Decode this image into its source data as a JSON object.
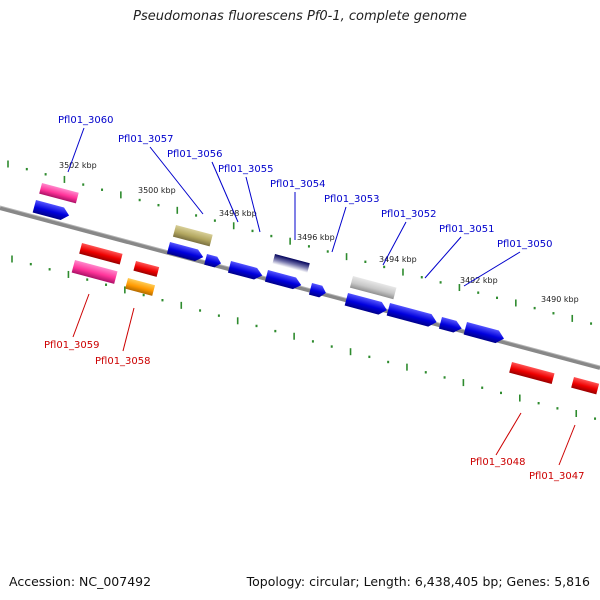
{
  "title": "Pseudomonas fluorescens Pf0-1, complete genome",
  "accession": "Accession: NC_007492",
  "topology": "Topology: circular; Length: 6,438,405 bp; Genes: 5,816",
  "colors": {
    "backbone": "#7a7a7a",
    "ticks": "#2e8b2e",
    "forward_label": "#0000cc",
    "reverse_label": "#cc0000"
  },
  "scale_labels": [
    "3502 kbp",
    "3500 kbp",
    "3498 kbp",
    "3496 kbp",
    "3494 kbp",
    "3492 kbp",
    "3490 kbp"
  ],
  "forward_labels": [
    "Pfl01_3060",
    "Pfl01_3057",
    "Pfl01_3056",
    "Pfl01_3055",
    "Pfl01_3054",
    "Pfl01_3053",
    "Pfl01_3052",
    "Pfl01_3051",
    "Pfl01_3050"
  ],
  "reverse_labels": [
    "Pfl01_3059",
    "Pfl01_3058",
    "Pfl01_3048",
    "Pfl01_3047"
  ]
}
